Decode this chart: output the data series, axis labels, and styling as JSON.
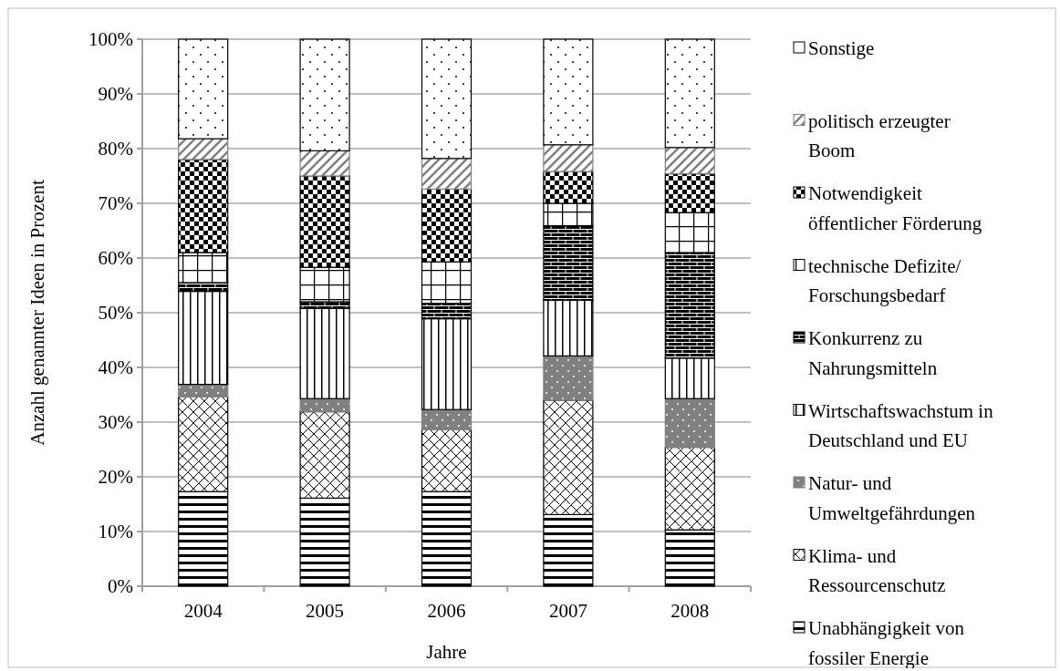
{
  "chart_data": {
    "type": "bar",
    "stacked": true,
    "xlabel": "Jahre",
    "ylabel": "Anzahl genannter Ideen in Prozent",
    "categories": [
      "2004",
      "2005",
      "2006",
      "2007",
      "2008"
    ],
    "ylim": [
      0,
      100
    ],
    "yticks": [
      {
        "value": 0,
        "label": "0%"
      },
      {
        "value": 10,
        "label": "10%"
      },
      {
        "value": 20,
        "label": "20%"
      },
      {
        "value": 30,
        "label": "30%"
      },
      {
        "value": 40,
        "label": "40%"
      },
      {
        "value": 50,
        "label": "50%"
      },
      {
        "value": 60,
        "label": "60%"
      },
      {
        "value": 70,
        "label": "70%"
      },
      {
        "value": 80,
        "label": "80%"
      },
      {
        "value": 90,
        "label": "90%"
      },
      {
        "value": 100,
        "label": "100%"
      }
    ],
    "grid": "y",
    "legend": "right",
    "series": [
      {
        "name": "Unabhängigkeit von fossiler Energie",
        "color": "#000000",
        "values": [
          17.3,
          16.1,
          17.3,
          13.1,
          10.3
        ]
      },
      {
        "name": "Klima- und Ressourcenschutz",
        "color": "#000000",
        "values": [
          17.3,
          15.8,
          11.3,
          20.9,
          15.1
        ]
      },
      {
        "name": "Natur- und Umweltgefährdungen",
        "color": "#808080",
        "values": [
          2.3,
          2.4,
          3.7,
          8.1,
          8.9
        ]
      },
      {
        "name": "Wirtschaftswachstum in Deutschland und EU",
        "color": "#000000",
        "values": [
          17,
          16.5,
          16.6,
          10.2,
          7.4
        ]
      },
      {
        "name": "Konkurrenz zu Nahrungsmitteln",
        "color": "#000000",
        "values": [
          1.6,
          1.2,
          2.8,
          13.6,
          19.3
        ]
      },
      {
        "name": "technische Defizite/Forschungsbedarf",
        "color": "#000000",
        "values": [
          5.5,
          6.3,
          7.6,
          4.1,
          7.3
        ]
      },
      {
        "name": "Notwendigkeit öffentlicher Förderung",
        "color": "#000000",
        "values": [
          17,
          16.7,
          13.3,
          5.8,
          7.1
        ]
      },
      {
        "name": "politisch erzeugter Boom",
        "color": "#808080",
        "values": [
          3.8,
          4.6,
          5.6,
          4.9,
          4.8
        ]
      },
      {
        "name": "Sonstige",
        "color": "#000000",
        "values": [
          18.2,
          20.4,
          21.8,
          19.3,
          19.8
        ]
      }
    ]
  }
}
